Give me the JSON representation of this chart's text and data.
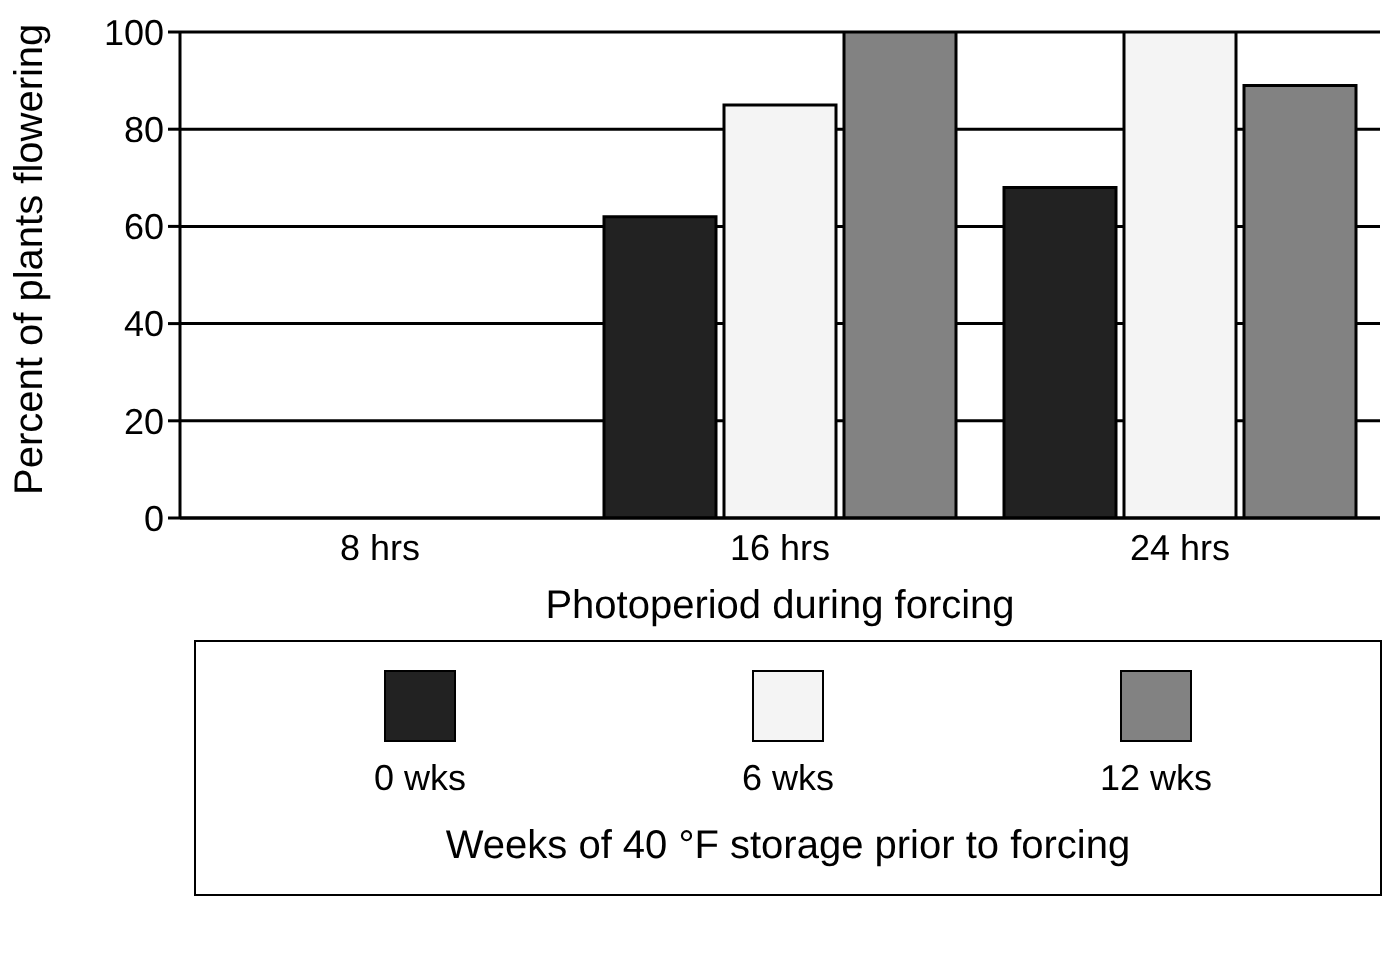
{
  "chart_data": {
    "type": "bar",
    "xlabel": "Photoperiod during forcing",
    "ylabel": "Percent of plants flowering",
    "legend_title": "Weeks of 40 °F storage prior to forcing",
    "categories": [
      "8 hrs",
      "16 hrs",
      "24 hrs"
    ],
    "series": [
      {
        "name": "0 wks",
        "color": "#222222",
        "values": [
          0,
          62,
          68
        ]
      },
      {
        "name": "6 wks",
        "color": "#f4f4f4",
        "values": [
          0,
          85,
          100
        ]
      },
      {
        "name": "12 wks",
        "color": "#828282",
        "values": [
          0,
          100,
          89
        ]
      }
    ],
    "ylim": [
      0,
      100
    ],
    "yticks": [
      0,
      20,
      40,
      60,
      80,
      100
    ],
    "grid": "y",
    "legend": "bottom"
  }
}
